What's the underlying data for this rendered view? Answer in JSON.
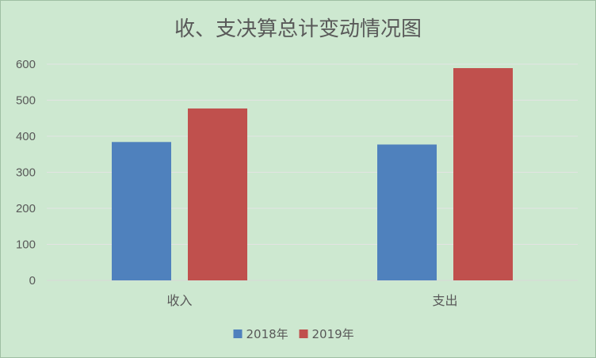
{
  "chart_data": {
    "type": "bar",
    "title": "收、支决算总计变动情况图",
    "categories": [
      "收入",
      "支出"
    ],
    "series": [
      {
        "name": "2018年",
        "color": "#4f81bd",
        "values": [
          384,
          377
        ]
      },
      {
        "name": "2019年",
        "color": "#c0504d",
        "values": [
          477,
          589
        ]
      }
    ],
    "ylim": [
      0,
      600
    ],
    "yticks": [
      0,
      100,
      200,
      300,
      400,
      500,
      600
    ],
    "grid": true,
    "legend": "bottom",
    "xlabel": "",
    "ylabel": ""
  }
}
